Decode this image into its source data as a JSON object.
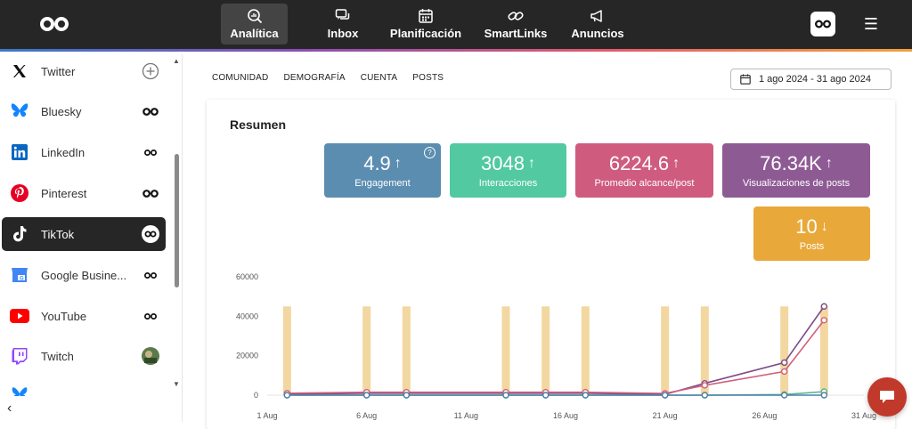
{
  "nav": {
    "items": [
      {
        "label": "Analítica",
        "icon": "analytics-icon",
        "active": true
      },
      {
        "label": "Inbox",
        "icon": "inbox-icon",
        "active": false
      },
      {
        "label": "Planificación",
        "icon": "calendar-icon",
        "active": false
      },
      {
        "label": "SmartLinks",
        "icon": "link-icon",
        "active": false
      },
      {
        "label": "Anuncios",
        "icon": "megaphone-icon",
        "active": false
      }
    ]
  },
  "sidebar": {
    "networks": [
      {
        "label": "Twitter",
        "icon": "x-twitter-icon",
        "state": "add",
        "active": false
      },
      {
        "label": "Bluesky",
        "icon": "bluesky-icon",
        "state": "connected",
        "active": false
      },
      {
        "label": "LinkedIn",
        "icon": "linkedin-icon",
        "state": "connected",
        "active": false
      },
      {
        "label": "Pinterest",
        "icon": "pinterest-icon",
        "state": "connected",
        "active": false
      },
      {
        "label": "TikTok",
        "icon": "tiktok-icon",
        "state": "connected",
        "active": true
      },
      {
        "label": "Google Busine...",
        "icon": "google-business-icon",
        "state": "connected",
        "active": false
      },
      {
        "label": "YouTube",
        "icon": "youtube-icon",
        "state": "connected",
        "active": false
      },
      {
        "label": "Twitch",
        "icon": "twitch-icon",
        "state": "avatar",
        "active": false
      }
    ]
  },
  "tabs": [
    "COMUNIDAD",
    "DEMOGRAFÍA",
    "CUENTA",
    "POSTS"
  ],
  "daterange": "1 ago 2024 - 31 ago 2024",
  "summary": {
    "title": "Resumen",
    "metrics": [
      {
        "value": "4.9",
        "arrow": "↑",
        "label": "Engagement",
        "color": "#5b8db0",
        "help": "?"
      },
      {
        "value": "3048",
        "arrow": "↑",
        "label": "Interacciones",
        "color": "#52c9a1"
      },
      {
        "value": "6224.6",
        "arrow": "↑",
        "label": "Promedio alcance/post",
        "color": "#cf5c7f"
      },
      {
        "value": "76.34K",
        "arrow": "↑",
        "label": "Visualizaciones de posts",
        "color": "#8e5a94"
      },
      {
        "value": "10",
        "arrow": "↓",
        "label": "Posts",
        "color": "#e9a83a"
      }
    ]
  },
  "chart_data": {
    "type": "line",
    "x_ticks": [
      "1 Aug",
      "6 Aug",
      "11 Aug",
      "16 Aug",
      "21 Aug",
      "26 Aug",
      "31 Aug"
    ],
    "y_ticks": [
      "60000",
      "40000",
      "20000",
      "0"
    ],
    "ylim": [
      0,
      60000
    ],
    "bars": {
      "color": "#f3d7a0",
      "days": [
        2,
        6,
        8,
        13,
        15,
        17,
        21,
        23,
        27,
        29
      ],
      "values": [
        45000,
        45000,
        45000,
        45000,
        45000,
        45000,
        45000,
        45000,
        45000,
        45000
      ]
    },
    "series": [
      {
        "color": "#7b4c8a",
        "points": [
          [
            2,
            500
          ],
          [
            6,
            1000
          ],
          [
            8,
            1000
          ],
          [
            13,
            1000
          ],
          [
            15,
            1000
          ],
          [
            17,
            1000
          ],
          [
            21,
            400
          ],
          [
            23,
            6000
          ],
          [
            27,
            16500
          ],
          [
            29,
            45000
          ]
        ]
      },
      {
        "color": "#d0607e",
        "points": [
          [
            2,
            1000
          ],
          [
            6,
            1500
          ],
          [
            8,
            1500
          ],
          [
            13,
            1500
          ],
          [
            15,
            1500
          ],
          [
            17,
            1500
          ],
          [
            21,
            900
          ],
          [
            23,
            5000
          ],
          [
            27,
            12000
          ],
          [
            29,
            38000
          ]
        ]
      },
      {
        "color": "#52b596",
        "points": [
          [
            2,
            0
          ],
          [
            6,
            0
          ],
          [
            8,
            0
          ],
          [
            13,
            0
          ],
          [
            15,
            0
          ],
          [
            17,
            0
          ],
          [
            21,
            0
          ],
          [
            23,
            0
          ],
          [
            27,
            300
          ],
          [
            29,
            1800
          ]
        ]
      },
      {
        "color": "#4f7fa8",
        "points": [
          [
            2,
            0
          ],
          [
            6,
            0
          ],
          [
            8,
            0
          ],
          [
            13,
            0
          ],
          [
            15,
            0
          ],
          [
            17,
            0
          ],
          [
            21,
            0
          ],
          [
            23,
            0
          ],
          [
            27,
            0
          ],
          [
            29,
            0
          ]
        ]
      }
    ]
  }
}
